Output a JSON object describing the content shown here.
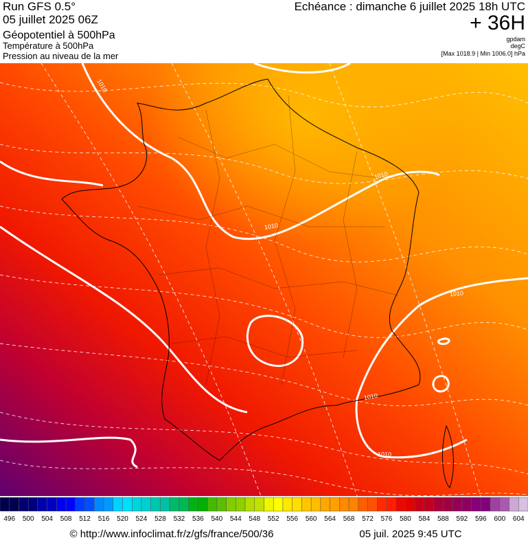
{
  "header": {
    "run": "Run GFS 0.5°",
    "date": "05 juillet 2025 06Z",
    "fields": [
      "Géopotentiel à 500hPa",
      "Température à 500hPa",
      "Pression au niveau de la mer"
    ],
    "forecast": "Echéance : dimanche 6 juillet 2025 18h UTC",
    "lead": "+ 36H",
    "units": [
      "gpdam",
      "degC",
      "[Max 1018.9 | Min 1006.0] hPa"
    ]
  },
  "map": {
    "isobar_labels": [
      "1010",
      "1010",
      "1010",
      "1010",
      "1010",
      "1010"
    ]
  },
  "colorbar": {
    "ticks": [
      496,
      500,
      504,
      508,
      512,
      516,
      520,
      524,
      528,
      532,
      536,
      540,
      544,
      548,
      552,
      556,
      560,
      564,
      568,
      572,
      576,
      580,
      584,
      588,
      592,
      596,
      600,
      604
    ]
  },
  "footer": {
    "url": "© http://www.infoclimat.fr/z/gfs/france/500/36",
    "timestamp": "05 juil. 2025  9:45 UTC"
  }
}
